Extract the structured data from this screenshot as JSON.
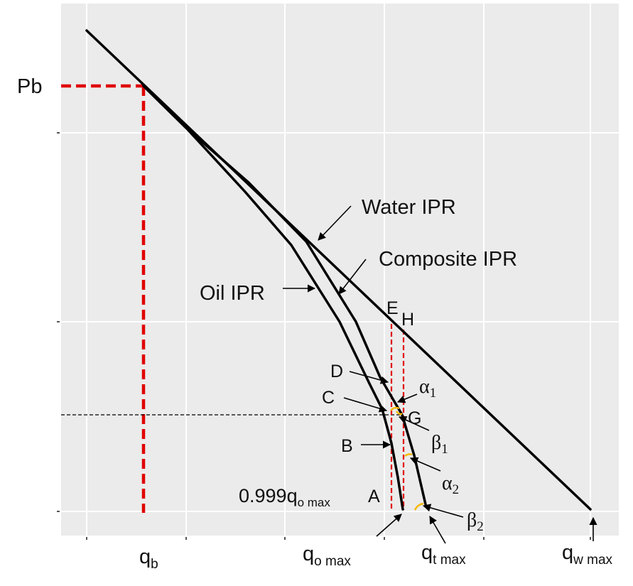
{
  "labels": {
    "pb": "Pb",
    "qb_main": "q",
    "qb_sub": "b",
    "water_ipr": "Water IPR",
    "composite_ipr": "Composite IPR",
    "oil_ipr": "Oil IPR",
    "E": "E",
    "H": "H",
    "D": "D",
    "C": "C",
    "G": "G",
    "B": "B",
    "A": "A",
    "alpha": "α",
    "alpha1_sub": "1",
    "alpha2_sub": "2",
    "beta": "β",
    "beta1_sub": "1",
    "beta2_sub": "2",
    "q999_main": "0.999q",
    "q999_sub": "o max",
    "qomax_main": "q",
    "qomax_sub": "o max",
    "qtmax_main": "q",
    "qtmax_sub": "t max",
    "qwmax_main": "q",
    "qwmax_sub": "w max"
  },
  "colors": {
    "panel": "#ebebeb",
    "grid": "#ffffff",
    "curves": "#000000",
    "reference_lines": "#e00000",
    "angle_marks": "#f5b800"
  }
}
